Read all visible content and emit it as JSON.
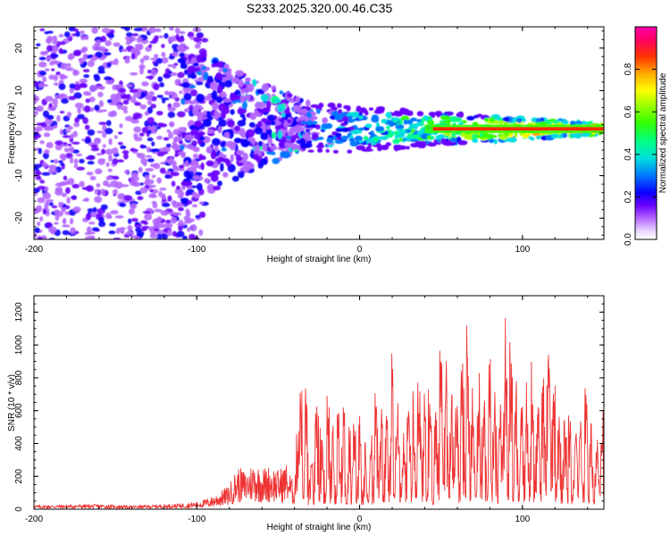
{
  "title": "S233.2025.320.00.46.C35",
  "chart_data": [
    {
      "type": "heatmap",
      "title": "S233.2025.320.00.46.C35",
      "xlabel": "Height of straight line (km)",
      "ylabel": "Frequency (Hz)",
      "xlim": [
        -200,
        150
      ],
      "ylim": [
        -25,
        25
      ],
      "xticks": [
        -200,
        -100,
        0,
        100
      ],
      "yticks": [
        -20,
        -10,
        0,
        10,
        20
      ],
      "colorbar": {
        "label": "Normalized spectral amplitude",
        "range": [
          0,
          1
        ],
        "ticks": [
          "0.0",
          "0.2",
          "0.4",
          "0.6",
          "0.8"
        ],
        "colormap": "gist_ncar-like (white-purple-blue-cyan-green-yellow-orange-red-magenta)"
      },
      "description_values": {
        "signal_band_frequency_hz": 1,
        "signal_band_start_km": -30,
        "signal_band_peak_amplitude": 0.85,
        "noise_region_km": [
          -200,
          -100
        ],
        "noise_amplitude": [
          0.0,
          0.2
        ]
      }
    },
    {
      "type": "line",
      "xlabel": "Height of straight line (km)",
      "ylabel": "SNR (10 * v/v)",
      "xlim": [
        -200,
        150
      ],
      "ylim": [
        0,
        1300
      ],
      "xticks": [
        -200,
        -100,
        0,
        100
      ],
      "yticks": [
        0,
        200,
        400,
        600,
        800,
        1000,
        1200
      ],
      "color": "#ee3333",
      "series": [
        {
          "name": "SNR",
          "x": [
            -200,
            -180,
            -160,
            -140,
            -120,
            -110,
            -100,
            -95,
            -90,
            -85,
            -80,
            -75,
            -70,
            -65,
            -60,
            -55,
            -50,
            -45,
            -40,
            -37,
            -35,
            -30,
            -25,
            -22,
            -20,
            -15,
            -10,
            -5,
            0,
            5,
            10,
            15,
            20,
            25,
            30,
            35,
            40,
            45,
            50,
            55,
            60,
            65,
            70,
            75,
            80,
            85,
            90,
            95,
            100,
            105,
            110,
            115,
            120,
            125,
            130,
            135,
            140,
            145,
            150
          ],
          "y": [
            25,
            28,
            30,
            22,
            30,
            35,
            45,
            60,
            80,
            110,
            150,
            260,
            230,
            290,
            250,
            270,
            240,
            280,
            150,
            900,
            1000,
            320,
            900,
            550,
            800,
            620,
            700,
            500,
            600,
            350,
            800,
            650,
            1050,
            500,
            700,
            850,
            1000,
            550,
            1200,
            1250,
            650,
            1200,
            800,
            900,
            1050,
            650,
            1250,
            880,
            850,
            1000,
            700,
            1060,
            950,
            600,
            650,
            750,
            820,
            400,
            800
          ]
        }
      ]
    }
  ]
}
